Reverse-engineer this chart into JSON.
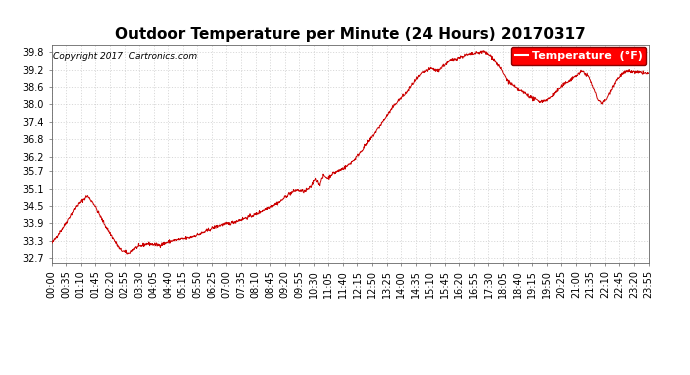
{
  "title": "Outdoor Temperature per Minute (24 Hours) 20170317",
  "copyright_text": "Copyright 2017  Cartronics.com",
  "legend_label": "Temperature  (°F)",
  "line_color": "#cc0000",
  "background_color": "#ffffff",
  "grid_color": "#bbbbbb",
  "yticks": [
    32.7,
    33.3,
    33.9,
    34.5,
    35.1,
    35.7,
    36.2,
    36.8,
    37.4,
    38.0,
    38.6,
    39.2,
    39.8
  ],
  "ylim": [
    32.55,
    40.05
  ],
  "xtick_labels": [
    "00:00",
    "00:35",
    "01:10",
    "01:45",
    "02:20",
    "02:55",
    "03:30",
    "04:05",
    "04:40",
    "05:15",
    "05:50",
    "06:25",
    "07:00",
    "07:35",
    "08:10",
    "08:45",
    "09:20",
    "09:55",
    "10:30",
    "11:05",
    "11:40",
    "12:15",
    "12:50",
    "13:25",
    "14:00",
    "14:35",
    "15:10",
    "15:45",
    "16:20",
    "16:55",
    "17:30",
    "18:05",
    "18:40",
    "19:15",
    "19:50",
    "20:25",
    "21:00",
    "21:35",
    "22:10",
    "22:45",
    "23:20",
    "23:55"
  ],
  "n_points": 1440,
  "title_fontsize": 11,
  "axis_fontsize": 7,
  "copyright_fontsize": 6.5,
  "legend_fontsize": 8
}
